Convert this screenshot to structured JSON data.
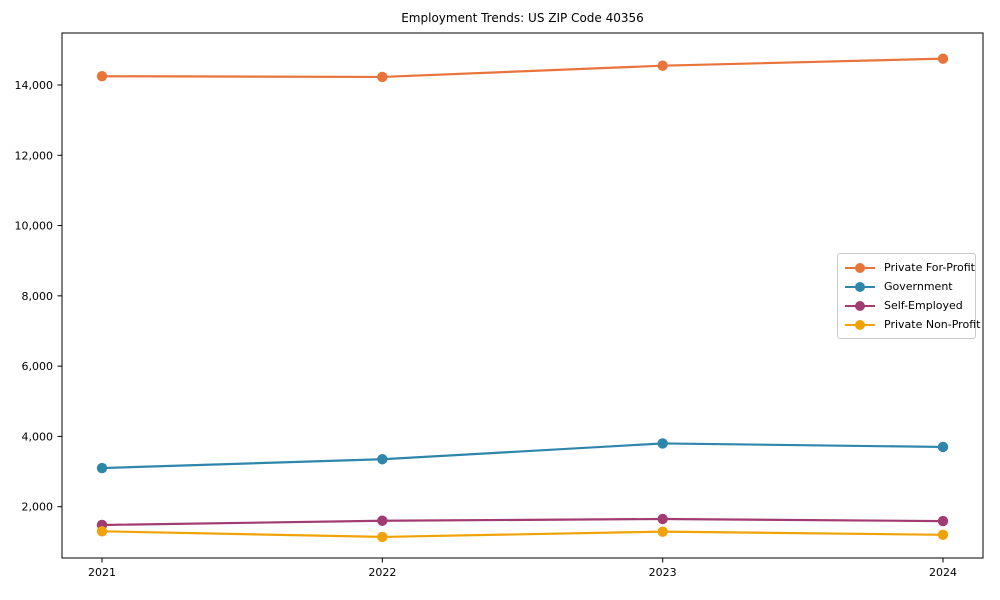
{
  "page": {
    "title": "Employment Trends: US ZIP Code 40356"
  },
  "chart_data": {
    "type": "line",
    "title": "Employment Trends: US ZIP Code 40356",
    "xlabel": "",
    "ylabel": "",
    "categories": [
      "2021",
      "2022",
      "2023",
      "2024"
    ],
    "series": [
      {
        "name": "Private For-Profit",
        "color": "#E8743B",
        "values": [
          14250,
          14230,
          14550,
          14750
        ]
      },
      {
        "name": "Government",
        "color": "#2E86AB",
        "values": [
          3100,
          3350,
          3800,
          3700
        ]
      },
      {
        "name": "Self-Employed",
        "color": "#A23B72",
        "values": [
          1480,
          1600,
          1650,
          1590
        ]
      },
      {
        "name": "Private Non-Profit",
        "color": "#F1A208",
        "values": [
          1300,
          1140,
          1290,
          1200
        ]
      }
    ],
    "ylim": [
      540,
      15480
    ],
    "yticks": [
      2000,
      4000,
      6000,
      8000,
      10000,
      12000,
      14000
    ],
    "ytick_labels": [
      "2,000",
      "4,000",
      "6,000",
      "8,000",
      "10,000",
      "12,000",
      "14,000"
    ],
    "grid": false,
    "legend_position": "right-middle",
    "axis_color": "#000000",
    "background_color": "#ffffff"
  }
}
